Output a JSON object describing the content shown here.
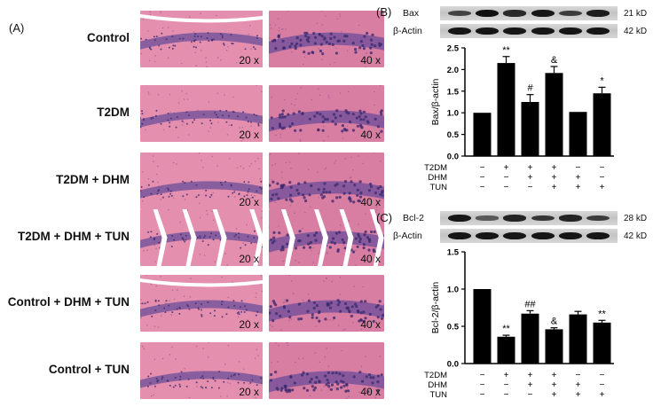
{
  "panel_a": {
    "label": "(A)",
    "groups": [
      {
        "label": "Control",
        "tiles": [
          "20 x",
          "40 x"
        ]
      },
      {
        "label": "T2DM",
        "tiles": [
          "20 x",
          "40 x"
        ]
      },
      {
        "label": "T2DM + DHM",
        "tiles": [
          "20 x",
          "40 x"
        ]
      },
      {
        "label": "T2DM + DHM + TUN",
        "tiles": [
          "20 x",
          "40 x"
        ]
      },
      {
        "label": "Control + DHM + TUN",
        "tiles": [
          "20 x",
          "40 x"
        ]
      },
      {
        "label": "Control + TUN",
        "tiles": [
          "20 x",
          "40 x"
        ]
      }
    ]
  },
  "panel_b": {
    "label": "(B)",
    "western_blot": [
      {
        "name": "Bax",
        "kd": "21 kD",
        "intensities": [
          0.55,
          0.95,
          0.75,
          0.9,
          0.6,
          0.85
        ]
      },
      {
        "name": "β-Actin",
        "kd": "42 kD",
        "intensities": [
          0.9,
          0.9,
          0.9,
          0.9,
          0.9,
          0.9
        ]
      }
    ]
  },
  "panel_c": {
    "label": "(C)",
    "western_blot": [
      {
        "name": "Bcl-2",
        "kd": "28 kD",
        "intensities": [
          0.9,
          0.35,
          0.8,
          0.65,
          0.8,
          0.6
        ]
      },
      {
        "name": "β-Actin",
        "kd": "42 kD",
        "intensities": [
          0.9,
          0.9,
          0.9,
          0.9,
          0.9,
          0.9
        ]
      }
    ]
  },
  "chart_data": [
    {
      "type": "bar",
      "ylabel": "Bax/β-actin",
      "ylim": [
        0,
        2.5
      ],
      "yticks": [
        "0.0",
        "0.5",
        "1.0",
        "1.5",
        "2.0",
        "2.5"
      ],
      "values": [
        1.0,
        2.15,
        1.25,
        1.92,
        1.02,
        1.45
      ],
      "errors": [
        0.0,
        0.15,
        0.17,
        0.15,
        0.0,
        0.14
      ],
      "significance": [
        "",
        "**",
        "#",
        "&",
        "",
        "*"
      ],
      "conditions": [
        {
          "name": "T2DM",
          "signs": [
            "−",
            "+",
            "+",
            "+",
            "−",
            "−"
          ]
        },
        {
          "name": "DHM",
          "signs": [
            "−",
            "−",
            "+",
            "+",
            "+",
            "−"
          ]
        },
        {
          "name": "TUN",
          "signs": [
            "−",
            "−",
            "−",
            "+",
            "+",
            "+"
          ]
        }
      ]
    },
    {
      "type": "bar",
      "ylabel": "Bcl-2/β-actin",
      "ylim": [
        0,
        1.5
      ],
      "yticks": [
        "0.0",
        "0.5",
        "1.0",
        "1.5"
      ],
      "values": [
        1.0,
        0.36,
        0.67,
        0.46,
        0.66,
        0.55
      ],
      "errors": [
        0.0,
        0.02,
        0.04,
        0.02,
        0.04,
        0.03
      ],
      "significance": [
        "",
        "**",
        "##",
        "&",
        "",
        "**"
      ],
      "conditions": [
        {
          "name": "T2DM",
          "signs": [
            "−",
            "+",
            "+",
            "+",
            "−",
            "−"
          ]
        },
        {
          "name": "DHM",
          "signs": [
            "−",
            "−",
            "+",
            "+",
            "+",
            "−"
          ]
        },
        {
          "name": "TUN",
          "signs": [
            "−",
            "−",
            "−",
            "+",
            "+",
            "+"
          ]
        }
      ]
    }
  ],
  "colors": {
    "tissue_bg": "#e48fae",
    "tissue_bg_alt": "#d97ea3",
    "cell_layer": "#6b4d9a",
    "nuclei": "#3d2a70",
    "bar": "#000000"
  }
}
